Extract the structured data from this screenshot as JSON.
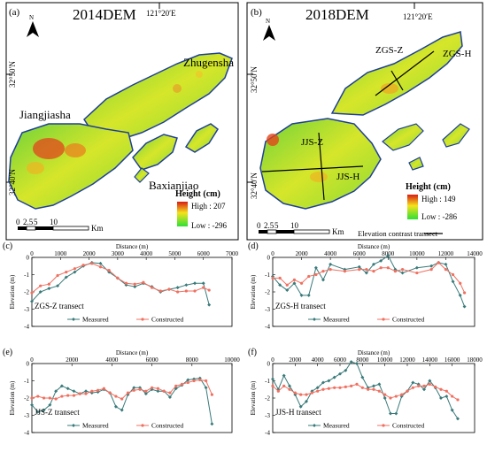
{
  "maps": [
    {
      "panel": "(a)",
      "title": "2014DEM",
      "lon_label": "121°20′E",
      "lat_labels": [
        "32°50′N",
        "32°40′N"
      ],
      "north": "N",
      "place_labels": [
        "Zhugensha",
        "Jiangjiasha",
        "Baxianjiao"
      ],
      "legend": {
        "title": "Height (cm)",
        "high": "High : 207",
        "low": "Low : -296"
      },
      "scale": {
        "ticks": [
          "0",
          "2.5",
          "5",
          "10"
        ],
        "unit": "Km"
      }
    },
    {
      "panel": "(b)",
      "title": "2018DEM",
      "lon_label": "121°20′E",
      "lat_labels": [
        "32°50′N",
        "32°40′N"
      ],
      "north": "N",
      "place_labels": [
        "ZGS-Z",
        "ZGS-H",
        "JJS-Z",
        "JJS-H"
      ],
      "legend": {
        "title": "Height (cm)",
        "high": "High : 149",
        "low": "Low : -286",
        "transect": "Elevation contrast transect"
      },
      "scale": {
        "ticks": [
          "0",
          "2.5",
          "5",
          "10"
        ],
        "unit": "Km"
      }
    }
  ],
  "colors": {
    "measured": "#3a7a7a",
    "constructed": "#f07060",
    "coast": "#1f3f9a"
  },
  "chart_data": [
    {
      "panel": "(c)",
      "type": "line",
      "title": "ZGS-Z transect",
      "xlabel": "Distance (m)",
      "ylabel": "Elevation (m)",
      "xlim": [
        0,
        7000
      ],
      "ylim": [
        -4,
        0
      ],
      "xticks": [
        "0",
        "1000",
        "2000",
        "3000",
        "4000",
        "5000",
        "6000",
        "7000"
      ],
      "yticks": [
        "0",
        "-1",
        "-2",
        "-3",
        "-4"
      ],
      "legend": [
        "Measured",
        "Constructed"
      ],
      "series": [
        {
          "name": "Measured",
          "x": [
            0,
            300,
            600,
            900,
            1200,
            1500,
            1800,
            2100,
            2400,
            2700,
            3000,
            3300,
            3600,
            3900,
            4200,
            4500,
            4800,
            5100,
            5400,
            5700,
            6000,
            6200
          ],
          "y": [
            -2.55,
            -2.0,
            -1.8,
            -1.65,
            -1.15,
            -0.85,
            -0.5,
            -0.3,
            -0.35,
            -0.85,
            -1.2,
            -1.6,
            -1.7,
            -1.5,
            -1.7,
            -2.0,
            -1.85,
            -1.75,
            -1.6,
            -1.5,
            -1.5,
            -2.75
          ]
        },
        {
          "name": "Constructed",
          "x": [
            0,
            300,
            600,
            900,
            1200,
            1500,
            1800,
            2100,
            2400,
            2700,
            3000,
            3300,
            3600,
            3900,
            4200,
            4500,
            4800,
            5100,
            5400,
            5700,
            6000,
            6200
          ],
          "y": [
            -2.05,
            -1.65,
            -1.55,
            -1.05,
            -0.85,
            -0.65,
            -0.45,
            -0.35,
            -0.55,
            -0.75,
            -1.2,
            -1.5,
            -1.55,
            -1.45,
            -1.75,
            -1.95,
            -1.85,
            -2.0,
            -1.95,
            -1.95,
            -1.75,
            -1.9
          ]
        }
      ]
    },
    {
      "panel": "(d)",
      "type": "line",
      "title": "ZGS-H transect",
      "xlabel": "Distance (m)",
      "ylabel": "Elevation (m)",
      "xlim": [
        0,
        14000
      ],
      "ylim": [
        -4,
        0
      ],
      "xticks": [
        "0",
        "2000",
        "4000",
        "6000",
        "8000",
        "10000",
        "12000",
        "14000"
      ],
      "yticks": [
        "0",
        "-1",
        "-2",
        "-3",
        "-4"
      ],
      "legend": [
        "Measured",
        "Constructed"
      ],
      "series": [
        {
          "name": "Measured",
          "x": [
            0,
            500,
            1000,
            1500,
            2000,
            2500,
            3000,
            3500,
            4000,
            5000,
            6000,
            6500,
            7000,
            7500,
            8000,
            8500,
            9000,
            10000,
            11000,
            11500,
            12000,
            12500,
            13000,
            13300
          ],
          "y": [
            -1.1,
            -1.6,
            -1.9,
            -1.5,
            -2.2,
            -2.2,
            -0.6,
            -1.3,
            -0.4,
            -0.7,
            -0.55,
            -0.9,
            -0.4,
            -0.2,
            0.1,
            -0.7,
            -0.9,
            -0.6,
            -0.5,
            -0.3,
            -0.4,
            -1.4,
            -2.2,
            -2.85
          ]
        },
        {
          "name": "Constructed",
          "x": [
            0,
            500,
            1000,
            1500,
            2000,
            2500,
            3000,
            3500,
            4000,
            5000,
            6000,
            6500,
            7000,
            7500,
            8000,
            8500,
            9000,
            10000,
            11000,
            11500,
            12000,
            12500,
            13000,
            13300
          ],
          "y": [
            -1.2,
            -1.2,
            -1.6,
            -1.3,
            -1.5,
            -1.1,
            -1.0,
            -0.8,
            -0.7,
            -0.8,
            -0.7,
            -0.7,
            -0.8,
            -0.6,
            -0.6,
            -0.8,
            -0.7,
            -0.9,
            -0.7,
            -0.3,
            -0.7,
            -1.0,
            -1.5,
            -2.05
          ]
        }
      ]
    },
    {
      "panel": "(e)",
      "type": "line",
      "title": "JJS-Z transect",
      "xlabel": "Distance (m)",
      "ylabel": "Elevation (m)",
      "xlim": [
        0,
        10000
      ],
      "ylim": [
        -4,
        0
      ],
      "xticks": [
        "0",
        "2000",
        "4000",
        "6000",
        "8000",
        "10000"
      ],
      "yticks": [
        "0",
        "-1",
        "-2",
        "-3",
        "-4"
      ],
      "legend": [
        "Measured",
        "Constructed"
      ],
      "series": [
        {
          "name": "Measured",
          "x": [
            0,
            300,
            600,
            900,
            1200,
            1500,
            1800,
            2100,
            2400,
            2700,
            3000,
            3300,
            3600,
            3900,
            4200,
            4500,
            4800,
            5100,
            5400,
            5700,
            6000,
            6300,
            6600,
            6900,
            7200,
            7500,
            7800,
            8100,
            8400,
            8700,
            9000
          ],
          "y": [
            -2.4,
            -2.8,
            -2.7,
            -2.4,
            -1.6,
            -1.3,
            -1.45,
            -1.6,
            -1.75,
            -1.6,
            -1.7,
            -1.65,
            -1.5,
            -1.7,
            -2.5,
            -2.7,
            -1.8,
            -1.4,
            -1.4,
            -1.75,
            -1.5,
            -1.6,
            -1.6,
            -1.95,
            -1.45,
            -1.25,
            -0.95,
            -0.9,
            -0.85,
            -1.4,
            -3.5
          ]
        },
        {
          "name": "Constructed",
          "x": [
            0,
            300,
            600,
            900,
            1200,
            1500,
            1800,
            2100,
            2400,
            2700,
            3000,
            3300,
            3600,
            3900,
            4200,
            4500,
            4800,
            5100,
            5400,
            5700,
            6000,
            6300,
            6600,
            6900,
            7200,
            7500,
            7800,
            8100,
            8400,
            8700,
            9000
          ],
          "y": [
            -2.0,
            -1.9,
            -2.0,
            -2.0,
            -2.05,
            -1.9,
            -1.85,
            -1.85,
            -1.75,
            -1.75,
            -1.6,
            -1.55,
            -1.45,
            -1.7,
            -1.9,
            -2.05,
            -1.7,
            -1.55,
            -1.5,
            -1.6,
            -1.4,
            -1.45,
            -1.6,
            -1.7,
            -1.3,
            -1.2,
            -1.1,
            -1.0,
            -0.95,
            -1.0,
            -1.8
          ]
        }
      ]
    },
    {
      "panel": "(f)",
      "type": "line",
      "title": "JJS-H transect",
      "xlabel": "Distance (m)",
      "ylabel": "Elevation (m)",
      "xlim": [
        0,
        18000
      ],
      "ylim": [
        -4,
        0
      ],
      "xticks": [
        "0",
        "2000",
        "4000",
        "6000",
        "8000",
        "10000",
        "12000",
        "14000",
        "16000",
        "18000"
      ],
      "yticks": [
        "0",
        "-1",
        "-2",
        "-3",
        "-4"
      ],
      "legend": [
        "Measured",
        "Constructed"
      ],
      "series": [
        {
          "name": "Measured",
          "x": [
            0,
            500,
            1000,
            1500,
            2000,
            2500,
            3000,
            3500,
            4000,
            4500,
            5000,
            5500,
            6000,
            6500,
            7000,
            7500,
            8000,
            8500,
            9000,
            9500,
            10000,
            10500,
            11000,
            11500,
            12000,
            12500,
            13000,
            13500,
            14000,
            14500,
            15000,
            15500,
            16000,
            16500
          ],
          "y": [
            -0.9,
            -1.5,
            -0.7,
            -1.3,
            -1.8,
            -2.5,
            -2.2,
            -1.6,
            -1.4,
            -1.1,
            -1.0,
            -0.8,
            -0.6,
            -0.4,
            0.1,
            0.0,
            -0.8,
            -1.4,
            -1.3,
            -1.2,
            -2.0,
            -2.9,
            -2.9,
            -1.9,
            -1.6,
            -1.1,
            -1.2,
            -1.5,
            -1.0,
            -1.4,
            -2.0,
            -1.9,
            -2.7,
            -3.2
          ]
        },
        {
          "name": "Constructed",
          "x": [
            0,
            500,
            1000,
            1500,
            2000,
            2500,
            3000,
            3500,
            4000,
            4500,
            5000,
            5500,
            6000,
            6500,
            7000,
            7500,
            8000,
            8500,
            9000,
            9500,
            10000,
            10500,
            11000,
            11500,
            12000,
            12500,
            13000,
            13500,
            14000,
            14500,
            15000,
            15500,
            16000,
            16500
          ],
          "y": [
            -1.3,
            -1.6,
            -1.3,
            -1.5,
            -1.7,
            -1.8,
            -1.8,
            -1.7,
            -1.6,
            -1.5,
            -1.45,
            -1.4,
            -1.4,
            -1.35,
            -1.3,
            -1.2,
            -1.4,
            -1.5,
            -1.5,
            -1.6,
            -1.8,
            -2.0,
            -1.9,
            -1.8,
            -1.6,
            -1.4,
            -1.3,
            -1.3,
            -1.2,
            -1.35,
            -1.5,
            -1.6,
            -1.9,
            -2.1
          ]
        }
      ]
    }
  ]
}
